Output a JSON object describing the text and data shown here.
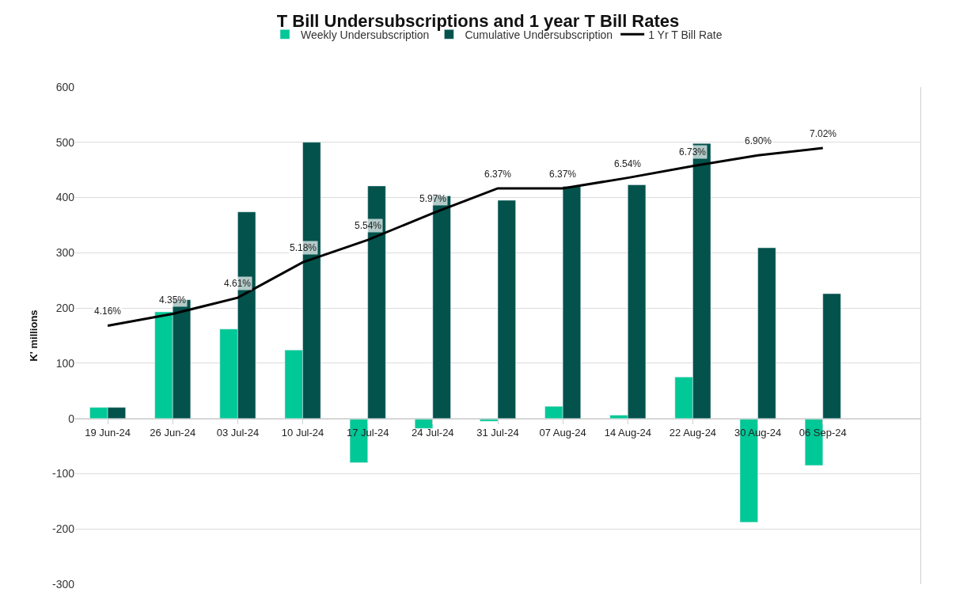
{
  "chart_data": {
    "type": "bar",
    "title": "T Bill Undersubscriptions and 1 year T Bill Rates",
    "ylabel": "K' millions",
    "categories": [
      "19 Jun-24",
      "26 Jun-24",
      "03 Jul-24",
      "10 Jul-24",
      "17 Jul-24",
      "24 Jul-24",
      "31 Jul-24",
      "07 Aug-24",
      "14 Aug-24",
      "22 Aug-24",
      "30 Aug-24",
      "06 Sep-24",
      null
    ],
    "series": [
      {
        "name": "Weekly Undersubscription",
        "color": "#00c896",
        "values": [
          20,
          193,
          162,
          124,
          -80,
          -18,
          -5,
          22,
          6,
          75,
          -188,
          -85,
          null
        ]
      },
      {
        "name": "Cumulative Undersubscription",
        "color": "#03524c",
        "values": [
          20,
          215,
          374,
          500,
          421,
          403,
          395,
          420,
          423,
          498,
          309,
          226,
          null
        ]
      },
      {
        "name": "1 Yr T Bill Rate",
        "type": "line",
        "axis": "y2",
        "color": "#000000",
        "values": [
          4.16,
          4.35,
          4.61,
          5.18,
          5.54,
          5.97,
          6.37,
          6.37,
          6.54,
          6.73,
          6.9,
          7.02,
          null
        ],
        "value_labels": [
          "4.16%",
          "4.35%",
          "4.61%",
          "5.18%",
          "5.54%",
          "5.97%",
          "6.37%",
          "6.37%",
          "6.54%",
          "6.73%",
          "6.90%",
          "7.02%",
          null
        ]
      }
    ],
    "ylim": [
      -300,
      600
    ],
    "yticks": [
      -300,
      -200,
      -100,
      0,
      100,
      200,
      300,
      400,
      500,
      600
    ],
    "y2lim": [
      0,
      8
    ],
    "grid": "y",
    "legend": "top",
    "marker": "none",
    "line_style": "solid"
  }
}
